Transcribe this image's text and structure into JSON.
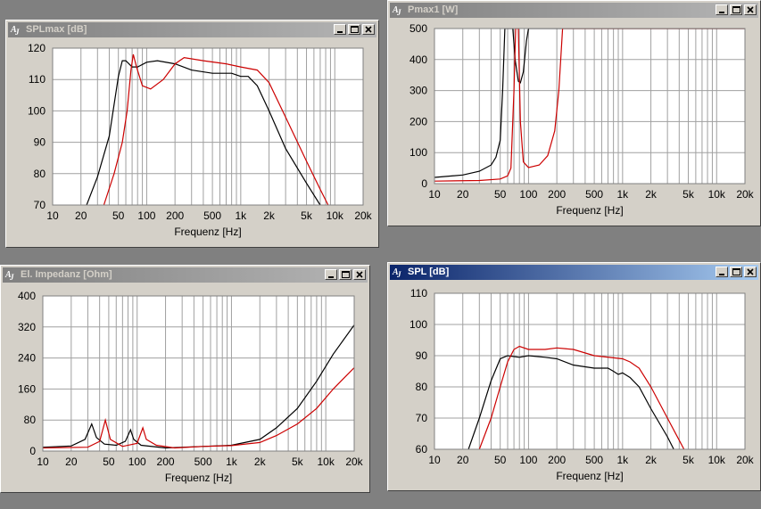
{
  "windows": {
    "splmax": {
      "title": "SPLmax [dB]",
      "active": false,
      "chart_data": {
        "type": "line",
        "xlabel": "Frequenz [Hz]",
        "xscale": "log",
        "xlim": [
          10,
          20000
        ],
        "ylim": [
          70,
          120
        ],
        "x_ticks": [
          10,
          20,
          50,
          100,
          200,
          500,
          1000,
          2000,
          5000,
          10000,
          20000
        ],
        "x_tick_labels": [
          "10",
          "20",
          "50",
          "100",
          "200",
          "500",
          "1k",
          "2k",
          "5k",
          "10k",
          "20k"
        ],
        "y_ticks": [
          70,
          80,
          90,
          100,
          110,
          120
        ],
        "y_tick_labels": [
          "70",
          "80",
          "90",
          "100",
          "110",
          "120"
        ],
        "grid": true,
        "series": [
          {
            "color": "#000000",
            "points": [
              [
                23,
                70
              ],
              [
                30,
                79
              ],
              [
                40,
                92
              ],
              [
                50,
                111
              ],
              [
                55,
                116
              ],
              [
                60,
                116
              ],
              [
                70,
                114
              ],
              [
                80,
                114
              ],
              [
                100,
                115.5
              ],
              [
                130,
                116
              ],
              [
                200,
                115
              ],
              [
                300,
                113
              ],
              [
                500,
                112
              ],
              [
                800,
                112
              ],
              [
                1000,
                111
              ],
              [
                1200,
                111
              ],
              [
                1500,
                108
              ],
              [
                2000,
                100
              ],
              [
                3000,
                88
              ],
              [
                5000,
                77
              ],
              [
                7000,
                70
              ]
            ]
          },
          {
            "color": "#cc0000",
            "points": [
              [
                35,
                70
              ],
              [
                45,
                80
              ],
              [
                55,
                90
              ],
              [
                62,
                100
              ],
              [
                68,
                113
              ],
              [
                72,
                118
              ],
              [
                78,
                114
              ],
              [
                90,
                108
              ],
              [
                110,
                107
              ],
              [
                150,
                110
              ],
              [
                200,
                115
              ],
              [
                250,
                117
              ],
              [
                400,
                116
              ],
              [
                700,
                115
              ],
              [
                1000,
                114
              ],
              [
                1500,
                113
              ],
              [
                2000,
                109
              ],
              [
                3000,
                98
              ],
              [
                5000,
                84
              ],
              [
                7000,
                75
              ],
              [
                8500,
                70
              ]
            ]
          }
        ]
      }
    },
    "pmax": {
      "title": "Pmax1 [W]",
      "active": false,
      "chart_data": {
        "type": "line",
        "xlabel": "Frequenz [Hz]",
        "xscale": "log",
        "xlim": [
          10,
          20000
        ],
        "ylim": [
          0,
          500
        ],
        "x_ticks": [
          10,
          20,
          50,
          100,
          200,
          500,
          1000,
          2000,
          5000,
          10000,
          20000
        ],
        "x_tick_labels": [
          "10",
          "20",
          "50",
          "100",
          "200",
          "500",
          "1k",
          "2k",
          "5k",
          "10k",
          "20k"
        ],
        "y_ticks": [
          0,
          100,
          200,
          300,
          400,
          500
        ],
        "y_tick_labels": [
          "0",
          "100",
          "200",
          "300",
          "400",
          "500"
        ],
        "grid": true,
        "series": [
          {
            "color": "#000000",
            "points": [
              [
                10,
                20
              ],
              [
                20,
                28
              ],
              [
                30,
                40
              ],
              [
                40,
                60
              ],
              [
                45,
                85
              ],
              [
                50,
                140
              ],
              [
                53,
                300
              ],
              [
                56,
                500
              ],
              [
                68,
                500
              ],
              [
                72,
                400
              ],
              [
                78,
                330
              ],
              [
                82,
                325
              ],
              [
                88,
                360
              ],
              [
                95,
                460
              ],
              [
                100,
                500
              ],
              [
                20000,
                500
              ]
            ]
          },
          {
            "color": "#cc0000",
            "points": [
              [
                10,
                8
              ],
              [
                30,
                10
              ],
              [
                50,
                15
              ],
              [
                60,
                25
              ],
              [
                65,
                50
              ],
              [
                70,
                300
              ],
              [
                73,
                500
              ],
              [
                78,
                500
              ],
              [
                82,
                200
              ],
              [
                88,
                70
              ],
              [
                100,
                52
              ],
              [
                130,
                60
              ],
              [
                160,
                90
              ],
              [
                190,
                170
              ],
              [
                210,
                300
              ],
              [
                230,
                500
              ],
              [
                20000,
                500
              ]
            ]
          }
        ]
      }
    },
    "impedance": {
      "title": "El. Impedanz [Ohm]",
      "active": false,
      "chart_data": {
        "type": "line",
        "xlabel": "Frequenz [Hz]",
        "xscale": "log",
        "xlim": [
          10,
          20000
        ],
        "ylim": [
          0,
          400
        ],
        "x_ticks": [
          10,
          20,
          50,
          100,
          200,
          500,
          1000,
          2000,
          5000,
          10000,
          20000
        ],
        "x_tick_labels": [
          "10",
          "20",
          "50",
          "100",
          "200",
          "500",
          "1k",
          "2k",
          "5k",
          "10k",
          "20k"
        ],
        "y_ticks": [
          0,
          80,
          160,
          240,
          320,
          400
        ],
        "y_tick_labels": [
          "0",
          "80",
          "160",
          "240",
          "320",
          "400"
        ],
        "grid": true,
        "series": [
          {
            "color": "#000000",
            "points": [
              [
                10,
                10
              ],
              [
                20,
                13
              ],
              [
                28,
                30
              ],
              [
                33,
                70
              ],
              [
                37,
                35
              ],
              [
                45,
                18
              ],
              [
                60,
                15
              ],
              [
                75,
                25
              ],
              [
                85,
                55
              ],
              [
                92,
                30
              ],
              [
                110,
                15
              ],
              [
                200,
                8
              ],
              [
                500,
                12
              ],
              [
                1000,
                15
              ],
              [
                2000,
                30
              ],
              [
                3000,
                60
              ],
              [
                5000,
                110
              ],
              [
                8000,
                180
              ],
              [
                12000,
                250
              ],
              [
                20000,
                325
              ]
            ]
          },
          {
            "color": "#cc0000",
            "points": [
              [
                10,
                8
              ],
              [
                30,
                10
              ],
              [
                40,
                25
              ],
              [
                46,
                80
              ],
              [
                52,
                30
              ],
              [
                70,
                12
              ],
              [
                100,
                20
              ],
              [
                115,
                60
              ],
              [
                125,
                30
              ],
              [
                160,
                15
              ],
              [
                250,
                8
              ],
              [
                500,
                12
              ],
              [
                1000,
                14
              ],
              [
                2000,
                22
              ],
              [
                3000,
                40
              ],
              [
                5000,
                70
              ],
              [
                8000,
                110
              ],
              [
                12000,
                160
              ],
              [
                20000,
                215
              ]
            ]
          }
        ]
      }
    },
    "spl": {
      "title": "SPL [dB]",
      "active": true,
      "chart_data": {
        "type": "line",
        "xlabel": "Frequenz [Hz]",
        "xscale": "log",
        "xlim": [
          10,
          20000
        ],
        "ylim": [
          60,
          110
        ],
        "x_ticks": [
          10,
          20,
          50,
          100,
          200,
          500,
          1000,
          2000,
          5000,
          10000,
          20000
        ],
        "x_tick_labels": [
          "10",
          "20",
          "50",
          "100",
          "200",
          "500",
          "1k",
          "2k",
          "5k",
          "10k",
          "20k"
        ],
        "y_ticks": [
          60,
          70,
          80,
          90,
          100,
          110
        ],
        "y_tick_labels": [
          "60",
          "70",
          "80",
          "90",
          "100",
          "110"
        ],
        "grid": true,
        "series": [
          {
            "color": "#000000",
            "points": [
              [
                23,
                60
              ],
              [
                30,
                70
              ],
              [
                40,
                82
              ],
              [
                50,
                89
              ],
              [
                60,
                90
              ],
              [
                80,
                89.5
              ],
              [
                100,
                90
              ],
              [
                150,
                89.5
              ],
              [
                200,
                89
              ],
              [
                300,
                87
              ],
              [
                500,
                86
              ],
              [
                700,
                86
              ],
              [
                800,
                85
              ],
              [
                900,
                84
              ],
              [
                1000,
                84.5
              ],
              [
                1200,
                83
              ],
              [
                1500,
                80
              ],
              [
                2000,
                73
              ],
              [
                3000,
                64
              ],
              [
                3500,
                60
              ]
            ]
          },
          {
            "color": "#cc0000",
            "points": [
              [
                30,
                60
              ],
              [
                40,
                70
              ],
              [
                50,
                80
              ],
              [
                60,
                88
              ],
              [
                70,
                92
              ],
              [
                80,
                93
              ],
              [
                100,
                92
              ],
              [
                150,
                92
              ],
              [
                200,
                92.5
              ],
              [
                300,
                92
              ],
              [
                500,
                90
              ],
              [
                1000,
                89
              ],
              [
                1200,
                88
              ],
              [
                1500,
                86
              ],
              [
                2000,
                80
              ],
              [
                3000,
                70
              ],
              [
                4500,
                60
              ]
            ]
          }
        ]
      }
    }
  }
}
